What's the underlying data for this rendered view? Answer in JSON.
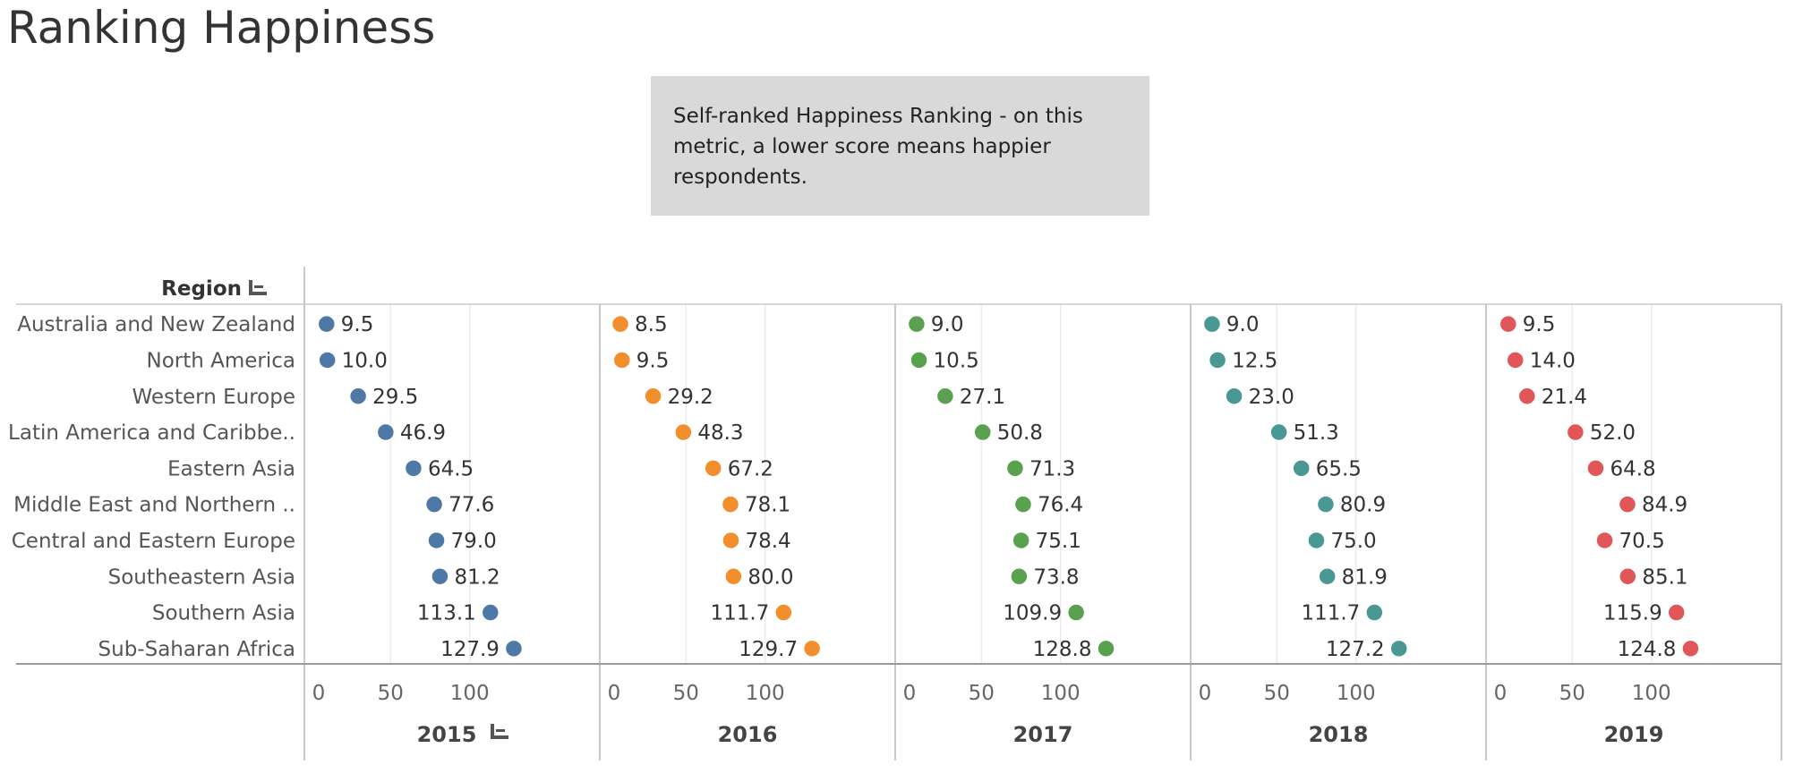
{
  "title": "Ranking Happiness",
  "note": "Self-ranked Happiness Ranking - on this metric, a lower score means happier respondents.",
  "chart_data": {
    "type": "scatter",
    "row_header": "Region",
    "rows": [
      "Australia and New Zealand",
      "North America",
      "Western Europe",
      "Latin America and Caribbe..",
      "Eastern Asia",
      "Middle East and Northern ..",
      "Central and Eastern Europe",
      "Southeastern Asia",
      "Southern Asia",
      "Sub-Saharan Africa"
    ],
    "xlim": [
      0,
      135
    ],
    "x_ticks": [
      0,
      50,
      100
    ],
    "x_tick_labels": [
      "0",
      "50",
      "100"
    ],
    "grid": true,
    "series": [
      {
        "name": "2015",
        "color": "#4e79a7",
        "values": [
          9.5,
          10.0,
          29.5,
          46.9,
          64.5,
          77.6,
          79.0,
          81.2,
          113.1,
          127.9
        ],
        "labels": [
          "9.5",
          "10.0",
          "29.5",
          "46.9",
          "64.5",
          "77.6",
          "79.0",
          "81.2",
          "113.1",
          "127.9"
        ]
      },
      {
        "name": "2016",
        "color": "#f28e2b",
        "values": [
          8.5,
          9.5,
          29.2,
          48.3,
          67.2,
          78.1,
          78.4,
          80.0,
          111.7,
          129.7
        ],
        "labels": [
          "8.5",
          "9.5",
          "29.2",
          "48.3",
          "67.2",
          "78.1",
          "78.4",
          "80.0",
          "111.7",
          "129.7"
        ]
      },
      {
        "name": "2017",
        "color": "#59a14f",
        "values": [
          9.0,
          10.5,
          27.1,
          50.8,
          71.3,
          76.4,
          75.1,
          73.8,
          109.9,
          128.8
        ],
        "labels": [
          "9.0",
          "10.5",
          "27.1",
          "50.8",
          "71.3",
          "76.4",
          "75.1",
          "73.8",
          "109.9",
          "128.8"
        ]
      },
      {
        "name": "2018",
        "color": "#499894",
        "values": [
          9.0,
          12.5,
          23.0,
          51.3,
          65.5,
          80.9,
          75.0,
          81.9,
          111.7,
          127.2
        ],
        "labels": [
          "9.0",
          "12.5",
          "23.0",
          "51.3",
          "65.5",
          "80.9",
          "75.0",
          "81.9",
          "111.7",
          "127.2"
        ]
      },
      {
        "name": "2019",
        "color": "#e15759",
        "values": [
          9.5,
          14.0,
          21.4,
          52.0,
          64.8,
          84.9,
          70.5,
          85.1,
          115.9,
          124.8
        ],
        "labels": [
          "9.5",
          "14.0",
          "21.4",
          "52.0",
          "64.8",
          "84.9",
          "70.5",
          "85.1",
          "115.9",
          "124.8"
        ]
      }
    ]
  }
}
